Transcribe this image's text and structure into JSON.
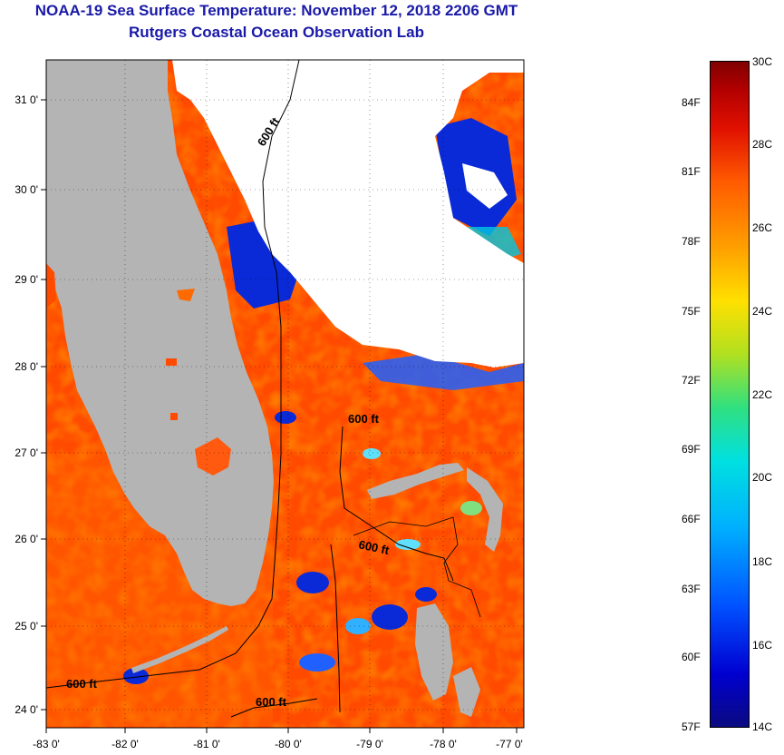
{
  "title": {
    "line1": "NOAA-19 Sea Surface Temperature:  November 12, 2018 2206 GMT",
    "line2": "Rutgers Coastal Ocean Observation Lab"
  },
  "map": {
    "x_ticks": [
      "-83 0'",
      "-82 0'",
      "-81 0'",
      "-80 0'",
      "-79 0'",
      "-78 0'",
      "-77 0'"
    ],
    "y_ticks": [
      "31 0'",
      "30 0'",
      "29 0'",
      "28 0'",
      "27 0'",
      "26 0'",
      "25 0'",
      "24 0'"
    ],
    "contour_label": "600 ft",
    "colors": {
      "land": "#b4b4b4",
      "cloud": "#ffffff",
      "warm_water": "#ff4a00"
    }
  },
  "colorbar": {
    "celsius": [
      "30C",
      "28C",
      "26C",
      "24C",
      "22C",
      "20C",
      "18C",
      "16C",
      "14C"
    ],
    "fahrenheit": [
      "84F",
      "81F",
      "78F",
      "75F",
      "72F",
      "69F",
      "66F",
      "63F",
      "60F",
      "57F"
    ]
  }
}
